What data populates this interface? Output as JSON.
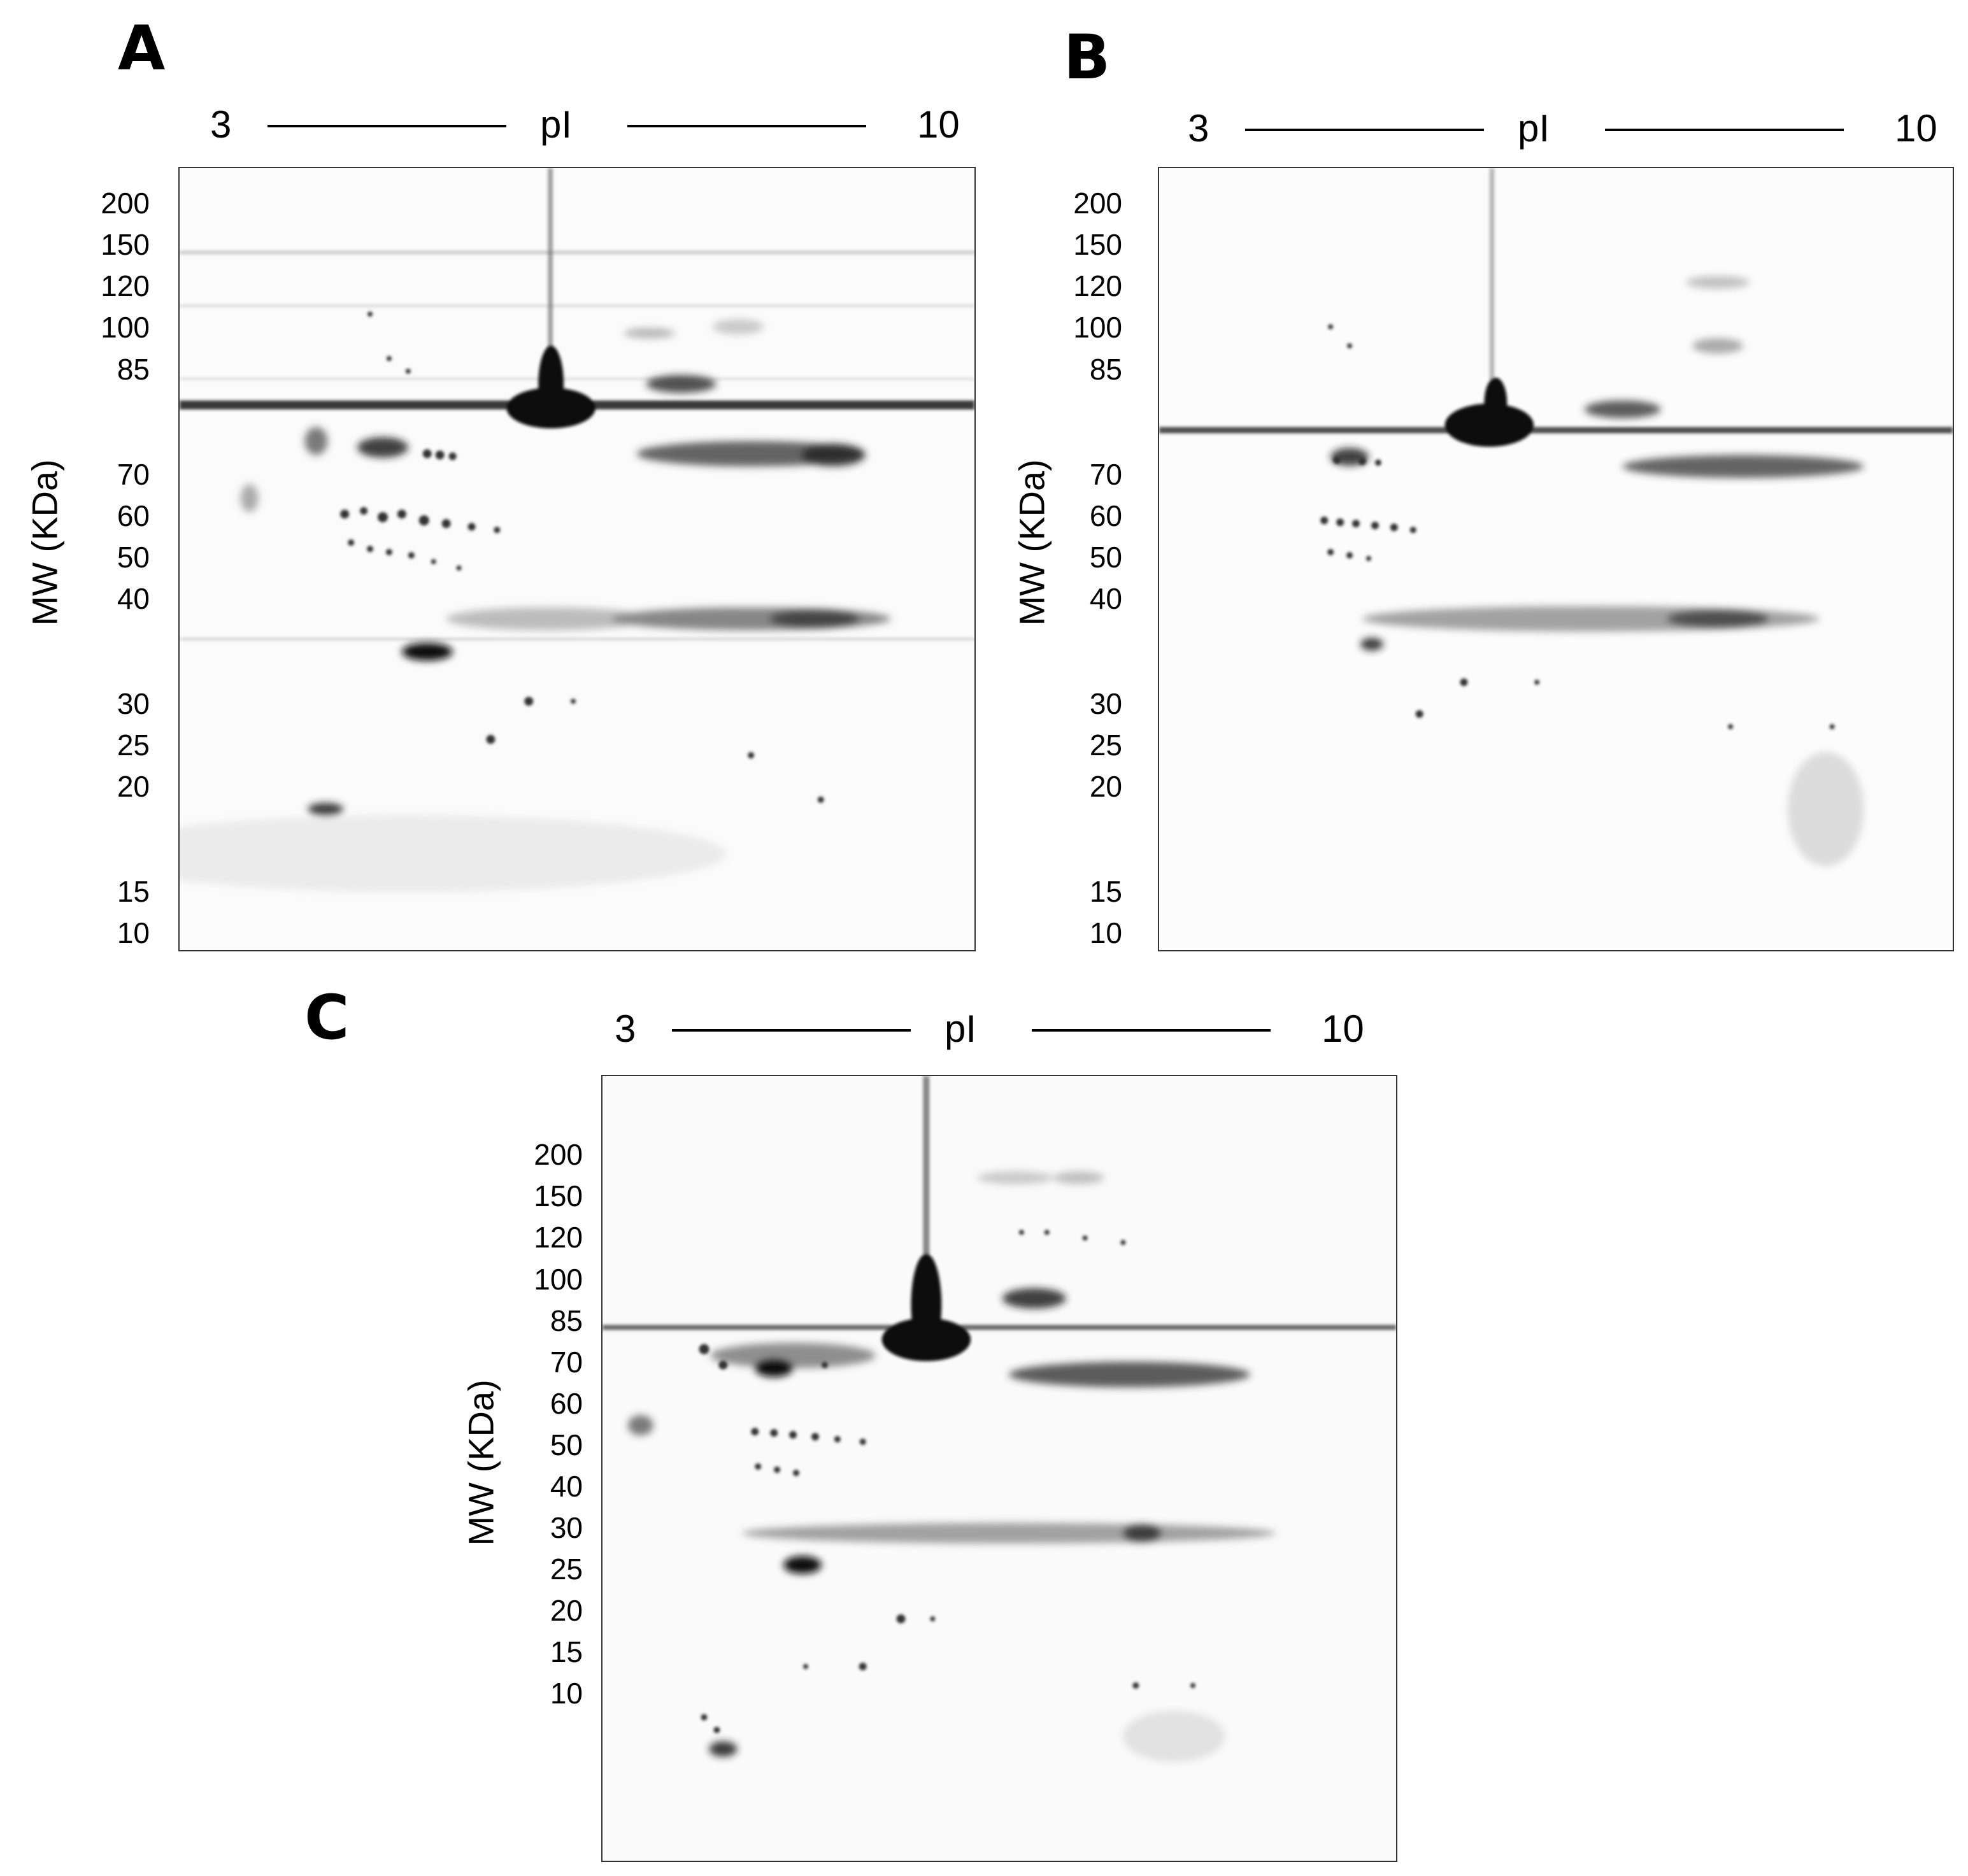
{
  "panels": [
    {
      "label": "A",
      "pi_min": "3",
      "pi_label": "pI",
      "pi_max": "10",
      "mw_axis_label": "MW (KDa)",
      "mw_ticks": [
        "200",
        "150",
        "120",
        "100",
        "85",
        "70",
        "60",
        "50",
        "40",
        "30",
        "25",
        "20",
        "15",
        "10"
      ]
    },
    {
      "label": "B",
      "pi_min": "3",
      "pi_label": "pI",
      "pi_max": "10",
      "mw_axis_label": "MW (KDa)",
      "mw_ticks": [
        "200",
        "150",
        "120",
        "100",
        "85",
        "70",
        "60",
        "50",
        "40",
        "30",
        "25",
        "20",
        "15",
        "10"
      ]
    },
    {
      "label": "C",
      "pi_min": "3",
      "pi_label": "pI",
      "pi_max": "10",
      "mw_axis_label": "MW (KDa)",
      "mw_ticks": [
        "200",
        "150",
        "120",
        "100",
        "85",
        "70",
        "60",
        "50",
        "40",
        "30",
        "25",
        "20",
        "15",
        "10"
      ]
    }
  ]
}
